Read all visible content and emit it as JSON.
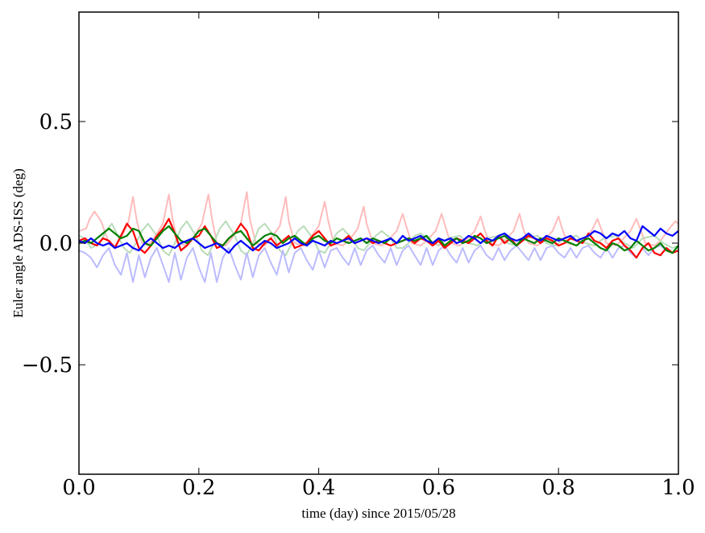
{
  "chart_data": {
    "type": "line",
    "title": "",
    "xlabel": "time (day) since 2015/05/28",
    "ylabel": "Euler angle ADS-ISS (deg)",
    "xlim": [
      0.0,
      1.0
    ],
    "ylim": [
      -0.95,
      0.95
    ],
    "xticks": [
      0.0,
      0.2,
      0.4,
      0.6,
      0.8,
      1.0
    ],
    "xtick_labels": [
      "0.0",
      "0.2",
      "0.4",
      "0.6",
      "0.8",
      "1.0"
    ],
    "yticks": [
      -0.5,
      0.0,
      0.5
    ],
    "ytick_labels": [
      "−0.5",
      "0.0",
      "0.5"
    ],
    "grid": false,
    "legend": "none",
    "series": [
      {
        "color": "#ffbbbb",
        "x": [
          0.0,
          0.012,
          0.018,
          0.026,
          0.037,
          0.05,
          0.06,
          0.07,
          0.082,
          0.09,
          0.096,
          0.105,
          0.115,
          0.125,
          0.14,
          0.15,
          0.156,
          0.165,
          0.18,
          0.19,
          0.205,
          0.216,
          0.222,
          0.23,
          0.245,
          0.255,
          0.27,
          0.28,
          0.285,
          0.295,
          0.31,
          0.32,
          0.335,
          0.345,
          0.35,
          0.36,
          0.375,
          0.385,
          0.4,
          0.41,
          0.416,
          0.425,
          0.44,
          0.45,
          0.465,
          0.475,
          0.48,
          0.49,
          0.505,
          0.515,
          0.53,
          0.54,
          0.546,
          0.555,
          0.57,
          0.58,
          0.595,
          0.605,
          0.611,
          0.62,
          0.635,
          0.645,
          0.66,
          0.67,
          0.676,
          0.685,
          0.7,
          0.71,
          0.725,
          0.735,
          0.741,
          0.75,
          0.765,
          0.775,
          0.79,
          0.8,
          0.806,
          0.815,
          0.83,
          0.84,
          0.855,
          0.865,
          0.871,
          0.88,
          0.895,
          0.905,
          0.92,
          0.93,
          0.936,
          0.945,
          0.96,
          0.97,
          0.985,
          0.995,
          1.0
        ],
        "y": [
          0.05,
          0.06,
          0.1,
          0.13,
          0.09,
          0.0,
          -0.01,
          0.02,
          0.08,
          0.19,
          0.1,
          0.0,
          -0.01,
          0.02,
          0.08,
          0.2,
          0.1,
          0.0,
          -0.01,
          0.02,
          0.08,
          0.2,
          0.1,
          0.0,
          -0.01,
          0.02,
          0.08,
          0.21,
          0.1,
          0.0,
          -0.01,
          0.02,
          0.07,
          0.19,
          0.09,
          0.0,
          -0.01,
          0.02,
          0.07,
          0.17,
          0.09,
          0.0,
          -0.01,
          0.01,
          0.06,
          0.15,
          0.08,
          0.0,
          -0.01,
          0.01,
          0.05,
          0.12,
          0.07,
          0.0,
          -0.01,
          0.01,
          0.05,
          0.12,
          0.07,
          0.0,
          -0.01,
          0.01,
          0.05,
          0.11,
          0.06,
          0.0,
          -0.01,
          0.01,
          0.05,
          0.12,
          0.06,
          0.0,
          -0.01,
          0.01,
          0.05,
          0.11,
          0.06,
          0.0,
          -0.01,
          0.01,
          0.05,
          0.1,
          0.06,
          0.0,
          -0.01,
          0.01,
          0.05,
          0.1,
          0.06,
          0.0,
          -0.01,
          0.01,
          0.06,
          0.09,
          0.08
        ]
      },
      {
        "color": "#b8dcb8",
        "x": [
          0.0,
          0.01,
          0.02,
          0.035,
          0.045,
          0.055,
          0.065,
          0.075,
          0.085,
          0.095,
          0.105,
          0.115,
          0.13,
          0.14,
          0.15,
          0.16,
          0.17,
          0.18,
          0.195,
          0.205,
          0.215,
          0.225,
          0.235,
          0.245,
          0.26,
          0.27,
          0.28,
          0.29,
          0.3,
          0.31,
          0.325,
          0.335,
          0.345,
          0.355,
          0.365,
          0.375,
          0.39,
          0.4,
          0.41,
          0.42,
          0.43,
          0.44,
          0.455,
          0.465,
          0.475,
          0.485,
          0.495,
          0.505,
          0.52,
          0.53,
          0.54,
          0.55,
          0.56,
          0.57,
          0.585,
          0.6,
          0.615,
          0.635,
          0.65,
          0.665,
          0.68,
          0.7,
          0.715,
          0.73,
          0.745,
          0.765,
          0.78,
          0.795,
          0.81,
          0.83,
          0.845,
          0.86,
          0.875,
          0.895,
          0.91,
          0.925,
          0.94,
          0.96,
          0.975,
          0.99,
          1.0
        ],
        "y": [
          0.03,
          0.02,
          -0.02,
          0.0,
          0.05,
          0.08,
          0.03,
          -0.02,
          -0.04,
          0.0,
          0.05,
          0.08,
          0.03,
          -0.03,
          -0.05,
          0.0,
          0.06,
          0.09,
          0.03,
          -0.03,
          -0.05,
          0.0,
          0.06,
          0.09,
          0.03,
          -0.03,
          -0.05,
          0.0,
          0.06,
          0.08,
          0.03,
          -0.03,
          -0.05,
          0.0,
          0.05,
          0.07,
          0.02,
          -0.03,
          -0.04,
          0.0,
          0.04,
          0.06,
          0.02,
          -0.02,
          -0.03,
          0.0,
          0.03,
          0.05,
          0.02,
          -0.02,
          -0.02,
          0.0,
          0.03,
          0.04,
          0.01,
          -0.01,
          0.02,
          0.03,
          0.0,
          -0.01,
          0.02,
          0.03,
          0.0,
          -0.01,
          0.02,
          0.03,
          0.0,
          -0.01,
          0.02,
          0.03,
          0.0,
          -0.01,
          0.02,
          0.03,
          0.0,
          -0.02,
          0.02,
          0.03,
          0.0,
          -0.02,
          -0.01
        ]
      },
      {
        "color": "#bbbbff",
        "x": [
          0.0,
          0.01,
          0.02,
          0.03,
          0.04,
          0.05,
          0.06,
          0.07,
          0.08,
          0.09,
          0.1,
          0.11,
          0.12,
          0.13,
          0.14,
          0.15,
          0.16,
          0.17,
          0.18,
          0.19,
          0.2,
          0.21,
          0.22,
          0.23,
          0.24,
          0.25,
          0.26,
          0.27,
          0.28,
          0.29,
          0.3,
          0.31,
          0.32,
          0.33,
          0.34,
          0.35,
          0.36,
          0.37,
          0.38,
          0.39,
          0.4,
          0.41,
          0.42,
          0.43,
          0.44,
          0.45,
          0.46,
          0.47,
          0.48,
          0.49,
          0.5,
          0.51,
          0.52,
          0.53,
          0.54,
          0.55,
          0.56,
          0.57,
          0.58,
          0.59,
          0.6,
          0.61,
          0.62,
          0.63,
          0.64,
          0.65,
          0.66,
          0.67,
          0.68,
          0.69,
          0.7,
          0.71,
          0.72,
          0.73,
          0.74,
          0.75,
          0.76,
          0.77,
          0.78,
          0.79,
          0.8,
          0.81,
          0.82,
          0.83,
          0.84,
          0.85,
          0.86,
          0.87,
          0.88,
          0.89,
          0.9,
          0.91,
          0.92,
          0.93,
          0.94,
          0.95,
          0.96,
          0.97,
          0.98,
          0.99,
          1.0
        ],
        "y": [
          -0.03,
          -0.04,
          -0.06,
          -0.1,
          -0.05,
          -0.02,
          -0.09,
          -0.13,
          -0.04,
          -0.16,
          -0.05,
          -0.14,
          -0.06,
          -0.02,
          -0.09,
          -0.16,
          -0.04,
          -0.15,
          -0.06,
          -0.02,
          -0.1,
          -0.16,
          -0.04,
          -0.16,
          -0.06,
          -0.02,
          -0.09,
          -0.15,
          -0.04,
          -0.14,
          -0.05,
          -0.02,
          -0.08,
          -0.13,
          -0.03,
          -0.12,
          -0.04,
          -0.02,
          -0.07,
          -0.11,
          -0.03,
          -0.1,
          -0.03,
          -0.02,
          -0.06,
          -0.09,
          -0.02,
          -0.09,
          -0.03,
          -0.01,
          -0.05,
          -0.08,
          -0.02,
          -0.09,
          -0.03,
          -0.01,
          -0.05,
          -0.09,
          -0.02,
          -0.09,
          -0.03,
          -0.01,
          -0.05,
          -0.08,
          -0.02,
          -0.08,
          -0.03,
          -0.01,
          -0.05,
          -0.07,
          -0.02,
          -0.07,
          -0.03,
          -0.01,
          -0.04,
          -0.07,
          -0.02,
          -0.07,
          -0.02,
          -0.01,
          -0.04,
          -0.06,
          -0.02,
          -0.06,
          -0.02,
          -0.01,
          -0.04,
          -0.06,
          -0.02,
          -0.06,
          -0.02,
          -0.01,
          -0.04,
          -0.06,
          -0.02,
          -0.05,
          -0.02,
          -0.01,
          -0.03,
          -0.04,
          -0.03
        ]
      },
      {
        "color": "#ff0000",
        "x": [
          0.0,
          0.01,
          0.02,
          0.03,
          0.04,
          0.05,
          0.06,
          0.07,
          0.08,
          0.09,
          0.1,
          0.11,
          0.12,
          0.13,
          0.14,
          0.15,
          0.16,
          0.17,
          0.18,
          0.19,
          0.2,
          0.21,
          0.22,
          0.23,
          0.24,
          0.25,
          0.26,
          0.27,
          0.28,
          0.29,
          0.3,
          0.31,
          0.32,
          0.33,
          0.34,
          0.35,
          0.36,
          0.37,
          0.38,
          0.39,
          0.4,
          0.41,
          0.42,
          0.43,
          0.44,
          0.45,
          0.46,
          0.47,
          0.48,
          0.49,
          0.5,
          0.51,
          0.52,
          0.53,
          0.54,
          0.55,
          0.56,
          0.57,
          0.58,
          0.59,
          0.6,
          0.61,
          0.62,
          0.63,
          0.64,
          0.65,
          0.66,
          0.67,
          0.68,
          0.69,
          0.7,
          0.71,
          0.72,
          0.73,
          0.74,
          0.75,
          0.76,
          0.77,
          0.78,
          0.79,
          0.8,
          0.81,
          0.82,
          0.83,
          0.84,
          0.85,
          0.86,
          0.87,
          0.88,
          0.89,
          0.9,
          0.91,
          0.92,
          0.93,
          0.94,
          0.95,
          0.96,
          0.97,
          0.98,
          0.99,
          1.0
        ],
        "y": [
          0.01,
          0.02,
          0.0,
          -0.01,
          0.02,
          0.01,
          -0.02,
          0.03,
          0.08,
          0.05,
          -0.02,
          -0.04,
          -0.01,
          0.03,
          0.06,
          0.1,
          0.04,
          -0.03,
          -0.01,
          0.02,
          0.03,
          0.07,
          0.03,
          -0.02,
          -0.01,
          0.02,
          0.04,
          0.08,
          0.05,
          -0.02,
          -0.03,
          0.0,
          0.02,
          -0.01,
          0.01,
          0.03,
          -0.02,
          -0.01,
          0.0,
          0.03,
          0.05,
          0.02,
          -0.01,
          0.0,
          0.01,
          0.03,
          0.0,
          0.01,
          0.02,
          0.0,
          0.01,
          0.0,
          -0.01,
          0.0,
          0.01,
          0.02,
          0.0,
          0.02,
          0.01,
          -0.01,
          0.01,
          -0.02,
          0.0,
          0.02,
          0.01,
          0.0,
          0.02,
          0.04,
          0.01,
          -0.01,
          0.03,
          0.0,
          0.02,
          -0.01,
          0.01,
          0.03,
          0.02,
          0.0,
          0.02,
          0.01,
          -0.01,
          0.0,
          0.02,
          0.01,
          0.0,
          0.04,
          0.01,
          0.0,
          -0.02,
          0.01,
          0.02,
          -0.01,
          -0.03,
          -0.06,
          -0.02,
          0.0,
          -0.04,
          -0.05,
          -0.02,
          -0.04,
          -0.03
        ]
      },
      {
        "color": "#008000",
        "x": [
          0.0,
          0.01,
          0.02,
          0.03,
          0.04,
          0.05,
          0.06,
          0.07,
          0.08,
          0.09,
          0.1,
          0.11,
          0.12,
          0.13,
          0.14,
          0.15,
          0.16,
          0.17,
          0.18,
          0.19,
          0.2,
          0.21,
          0.22,
          0.23,
          0.24,
          0.25,
          0.26,
          0.27,
          0.28,
          0.29,
          0.3,
          0.31,
          0.32,
          0.33,
          0.34,
          0.35,
          0.36,
          0.37,
          0.38,
          0.39,
          0.4,
          0.41,
          0.42,
          0.43,
          0.44,
          0.45,
          0.46,
          0.47,
          0.48,
          0.49,
          0.5,
          0.51,
          0.52,
          0.53,
          0.54,
          0.55,
          0.56,
          0.57,
          0.58,
          0.59,
          0.6,
          0.61,
          0.62,
          0.63,
          0.64,
          0.65,
          0.66,
          0.67,
          0.68,
          0.69,
          0.7,
          0.71,
          0.72,
          0.73,
          0.74,
          0.75,
          0.76,
          0.77,
          0.78,
          0.79,
          0.8,
          0.81,
          0.82,
          0.83,
          0.84,
          0.85,
          0.86,
          0.87,
          0.88,
          0.89,
          0.9,
          0.91,
          0.92,
          0.93,
          0.94,
          0.95,
          0.96,
          0.97,
          0.98,
          0.99,
          1.0
        ],
        "y": [
          0.0,
          0.01,
          0.0,
          0.02,
          0.04,
          0.06,
          0.04,
          0.02,
          0.03,
          0.06,
          0.05,
          0.0,
          -0.01,
          0.02,
          0.05,
          0.07,
          0.04,
          0.01,
          0.0,
          0.02,
          0.05,
          0.06,
          0.03,
          0.0,
          -0.01,
          0.02,
          0.04,
          0.05,
          0.02,
          -0.01,
          0.01,
          0.03,
          0.04,
          0.03,
          0.0,
          0.02,
          0.03,
          0.01,
          -0.01,
          0.02,
          0.03,
          0.01,
          0.0,
          0.02,
          0.01,
          0.0,
          0.01,
          0.02,
          0.0,
          0.02,
          0.01,
          0.0,
          0.02,
          0.0,
          0.01,
          0.02,
          0.01,
          0.02,
          0.03,
          0.0,
          0.02,
          -0.01,
          0.01,
          0.02,
          0.0,
          0.01,
          0.03,
          0.02,
          0.0,
          0.01,
          0.02,
          0.03,
          0.01,
          -0.01,
          0.02,
          0.01,
          0.0,
          0.02,
          0.01,
          0.0,
          0.02,
          0.01,
          0.0,
          -0.01,
          0.01,
          0.02,
          0.0,
          -0.02,
          -0.03,
          0.0,
          -0.01,
          -0.03,
          -0.02,
          0.01,
          -0.01,
          -0.03,
          -0.02,
          0.0,
          -0.03,
          -0.04,
          -0.01
        ]
      },
      {
        "color": "#0000ff",
        "x": [
          0.0,
          0.01,
          0.02,
          0.03,
          0.04,
          0.05,
          0.06,
          0.07,
          0.08,
          0.09,
          0.1,
          0.11,
          0.12,
          0.13,
          0.14,
          0.15,
          0.16,
          0.17,
          0.18,
          0.19,
          0.2,
          0.21,
          0.22,
          0.23,
          0.24,
          0.25,
          0.26,
          0.27,
          0.28,
          0.29,
          0.3,
          0.31,
          0.32,
          0.33,
          0.34,
          0.35,
          0.36,
          0.37,
          0.38,
          0.39,
          0.4,
          0.41,
          0.42,
          0.43,
          0.44,
          0.45,
          0.46,
          0.47,
          0.48,
          0.49,
          0.5,
          0.51,
          0.52,
          0.53,
          0.54,
          0.55,
          0.56,
          0.57,
          0.58,
          0.59,
          0.6,
          0.61,
          0.62,
          0.63,
          0.64,
          0.65,
          0.66,
          0.67,
          0.68,
          0.69,
          0.7,
          0.71,
          0.72,
          0.73,
          0.74,
          0.75,
          0.76,
          0.77,
          0.78,
          0.79,
          0.8,
          0.81,
          0.82,
          0.83,
          0.84,
          0.85,
          0.86,
          0.87,
          0.88,
          0.89,
          0.9,
          0.91,
          0.92,
          0.93,
          0.94,
          0.95,
          0.96,
          0.97,
          0.98,
          0.99,
          1.0
        ],
        "y": [
          0.01,
          0.0,
          0.02,
          0.0,
          -0.01,
          0.0,
          -0.02,
          -0.01,
          0.0,
          -0.02,
          -0.03,
          0.0,
          0.02,
          0.0,
          -0.02,
          -0.01,
          -0.02,
          0.0,
          0.01,
          0.02,
          0.0,
          -0.02,
          -0.01,
          0.0,
          -0.02,
          -0.04,
          -0.01,
          0.01,
          -0.01,
          -0.03,
          -0.01,
          0.01,
          0.0,
          -0.02,
          -0.01,
          0.0,
          0.02,
          0.0,
          -0.01,
          0.01,
          0.0,
          -0.01,
          0.01,
          0.0,
          0.01,
          0.02,
          0.0,
          0.01,
          0.02,
          0.01,
          0.0,
          0.01,
          0.02,
          0.0,
          0.03,
          0.01,
          0.02,
          0.03,
          0.01,
          0.0,
          0.02,
          0.01,
          0.02,
          0.0,
          0.01,
          0.03,
          0.02,
          0.0,
          0.02,
          0.01,
          0.03,
          0.04,
          0.02,
          0.01,
          0.02,
          0.04,
          0.02,
          0.01,
          0.03,
          0.02,
          0.01,
          0.02,
          0.03,
          0.01,
          0.02,
          0.03,
          0.05,
          0.04,
          0.02,
          0.04,
          0.03,
          0.05,
          0.02,
          0.01,
          0.07,
          0.05,
          0.03,
          0.06,
          0.04,
          0.03,
          0.05
        ]
      }
    ]
  }
}
